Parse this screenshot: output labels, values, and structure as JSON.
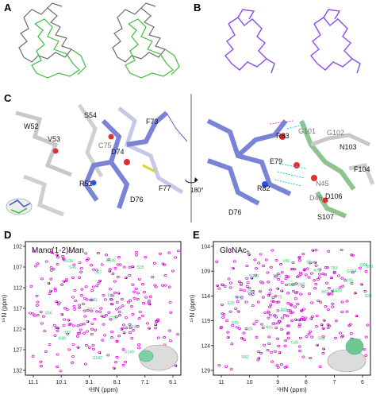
{
  "panels": {
    "a": {
      "label": "A"
    },
    "b": {
      "label": "B"
    },
    "c": {
      "label": "C",
      "rotation": "180°",
      "left_residues": [
        {
          "text": "W52",
          "color": "#111111"
        },
        {
          "text": "S54",
          "color": "#111111"
        },
        {
          "text": "V53",
          "color": "#111111"
        },
        {
          "text": "C75",
          "color": "#777777"
        },
        {
          "text": "F73",
          "color": "#111111"
        },
        {
          "text": "D74",
          "color": "#111111"
        },
        {
          "text": "R51",
          "color": "#111111"
        },
        {
          "text": "D76",
          "color": "#111111"
        },
        {
          "text": "F77",
          "color": "#111111"
        }
      ],
      "right_residues": [
        {
          "text": "R83",
          "color": "#111111"
        },
        {
          "text": "G101",
          "color": "#777777"
        },
        {
          "text": "G102",
          "color": "#777777"
        },
        {
          "text": "N103",
          "color": "#111111"
        },
        {
          "text": "E79",
          "color": "#111111"
        },
        {
          "text": "F104",
          "color": "#111111"
        },
        {
          "text": "R82",
          "color": "#111111"
        },
        {
          "text": "N45",
          "color": "#777777"
        },
        {
          "text": "D46",
          "color": "#777777"
        },
        {
          "text": "D106",
          "color": "#111111"
        },
        {
          "text": "D76",
          "color": "#111111"
        },
        {
          "text": "S107",
          "color": "#111111"
        }
      ]
    },
    "d": {
      "label": "D",
      "title": "Manα(1-2)Man",
      "xlabel": "¹HN (ppm)",
      "ylabel": "¹⁵N (ppm)",
      "xticks": [
        "11.1",
        "10.1",
        "9.1",
        "8.1",
        "7.1",
        "6.1"
      ],
      "yticks": [
        "102",
        "107",
        "112",
        "117",
        "122",
        "127",
        "132"
      ],
      "peak_labels": [
        "G90",
        "G149",
        "G39",
        "S56",
        "S45",
        "D136",
        "G142",
        "N81",
        "Y22",
        "E58",
        "D67",
        "S11",
        "S35",
        "N140",
        "R145",
        "R97"
      ]
    },
    "e": {
      "label": "E",
      "title": "GlcNAc₅",
      "xlabel": "¹HN (ppm)",
      "ylabel": "¹⁵N (ppm)",
      "xticks": [
        "11",
        "10",
        "9",
        "8",
        "7",
        "6"
      ],
      "yticks": [
        "104",
        "109",
        "114",
        "119",
        "124",
        "129"
      ],
      "peak_labels": [
        "S70",
        "G36",
        "G80",
        "D79",
        "S59",
        "W52",
        "G104",
        "R82",
        "N66",
        "F75",
        "N65",
        "R51",
        "V53",
        "W89",
        "D105",
        "R83",
        "Q96",
        "T93",
        "S54",
        "E20",
        "S110",
        "S38",
        "L25",
        "N103",
        "Y68",
        "A78",
        "V60"
      ]
    }
  },
  "colors": {
    "grey_trace": "#6b6b6b",
    "green_trace": "#3dbb3d",
    "purple_trace": "#8a4cf0",
    "blue_stick": "#6a74cc",
    "green_stick": "#7fb77f",
    "magenta_peak": "#d400d4",
    "black_peak": "#111111",
    "green_label": "#22cc66"
  }
}
